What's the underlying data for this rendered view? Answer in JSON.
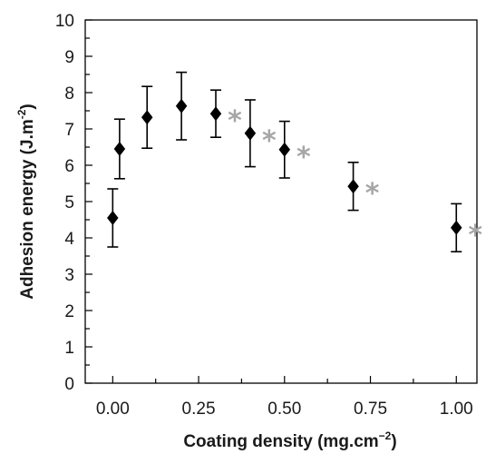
{
  "chart_data": {
    "type": "scatter",
    "xlabel_main": "Coating density (mg.cm",
    "xlabel_sup": "−2",
    "xlabel_end": ")",
    "ylabel_main": "Adhesion energy (J.m",
    "ylabel_sup": "-2",
    "ylabel_end": ")",
    "xlim": [
      -0.08,
      1.06
    ],
    "ylim": [
      0,
      10
    ],
    "x_ticks": [
      "0.00",
      "0.25",
      "0.50",
      "0.75",
      "1.00"
    ],
    "x_tick_values": [
      0,
      0.25,
      0.5,
      0.75,
      1.0
    ],
    "y_ticks": [
      "0",
      "1",
      "2",
      "3",
      "4",
      "5",
      "6",
      "7",
      "8",
      "9",
      "10"
    ],
    "grid": false,
    "marker": "diamond",
    "marker_color": "#000000",
    "significance_color": "#a6a6a6",
    "significance_symbol": "*",
    "points": [
      {
        "x": 0.0,
        "y": 4.55,
        "err": 0.8,
        "significant": false
      },
      {
        "x": 0.02,
        "y": 6.45,
        "err": 0.82,
        "significant": false
      },
      {
        "x": 0.1,
        "y": 7.32,
        "err": 0.85,
        "significant": false
      },
      {
        "x": 0.2,
        "y": 7.63,
        "err": 0.93,
        "significant": false
      },
      {
        "x": 0.3,
        "y": 7.42,
        "err": 0.65,
        "significant": true
      },
      {
        "x": 0.4,
        "y": 6.88,
        "err": 0.92,
        "significant": true
      },
      {
        "x": 0.5,
        "y": 6.43,
        "err": 0.78,
        "significant": true
      },
      {
        "x": 0.7,
        "y": 5.42,
        "err": 0.66,
        "significant": true
      },
      {
        "x": 1.0,
        "y": 4.28,
        "err": 0.66,
        "significant": true
      }
    ]
  }
}
